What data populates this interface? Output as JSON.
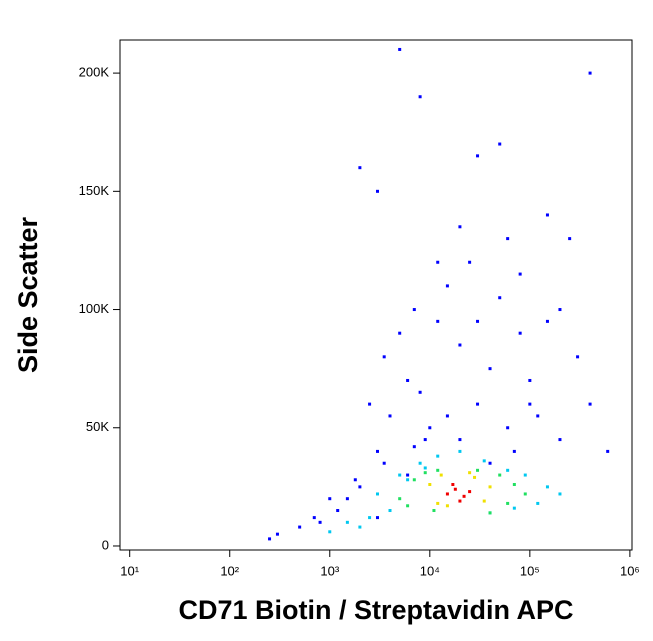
{
  "chart_data": {
    "type": "scatter",
    "x_label": "CD71 Biotin / Streptavidin APC",
    "y_label": "Side Scatter",
    "xscale": "log",
    "xlim": [
      8,
      1050000
    ],
    "ylim": [
      -1700,
      214000
    ],
    "xticks": [
      {
        "value": 10,
        "label": "10¹"
      },
      {
        "value": 100,
        "label": "10²"
      },
      {
        "value": 1000,
        "label": "10³"
      },
      {
        "value": 10000,
        "label": "10⁴"
      },
      {
        "value": 100000,
        "label": "10⁵"
      },
      {
        "value": 1000000,
        "label": "10⁶"
      }
    ],
    "yticks": [
      0,
      {
        "value": 50000,
        "label": "50K"
      },
      {
        "value": 100000,
        "label": "100K"
      },
      {
        "value": 150000,
        "label": "150K"
      },
      {
        "value": 200000,
        "label": "200K"
      }
    ],
    "series": [
      {
        "color": "#0000ff",
        "x": [
          300,
          500,
          800,
          1200,
          1500,
          2000,
          2500,
          3000,
          3500,
          4000,
          5000,
          6000,
          7000,
          8000,
          9000,
          12000,
          15000,
          20000,
          25000,
          30000,
          40000,
          50000,
          60000,
          80000,
          100000,
          150000,
          200000,
          300000,
          400000,
          600000,
          2000,
          3000,
          5000,
          8000,
          12000,
          20000,
          30000,
          50000,
          80000,
          150000,
          250000,
          400000,
          3000,
          6000,
          10000,
          20000,
          40000,
          70000,
          120000,
          3500,
          7000,
          15000,
          30000,
          60000,
          100000,
          200000,
          250,
          700,
          1000,
          1800
        ],
        "y": [
          5000,
          8000,
          10000,
          15000,
          20000,
          25000,
          60000,
          40000,
          80000,
          55000,
          90000,
          70000,
          100000,
          65000,
          45000,
          95000,
          110000,
          85000,
          120000,
          60000,
          75000,
          105000,
          130000,
          90000,
          70000,
          140000,
          100000,
          80000,
          60000,
          40000,
          160000,
          150000,
          210000,
          190000,
          120000,
          135000,
          165000,
          170000,
          115000,
          95000,
          130000,
          200000,
          12000,
          30000,
          50000,
          45000,
          35000,
          40000,
          55000,
          35000,
          42000,
          55000,
          95000,
          50000,
          60000,
          45000,
          3000,
          12000,
          20000,
          28000
        ]
      },
      {
        "color": "#00c8f0",
        "x": [
          1500,
          2500,
          4000,
          6000,
          8000,
          12000,
          20000,
          35000,
          60000,
          90000,
          150000,
          3000,
          5000,
          9000,
          40000,
          70000,
          120000,
          200000,
          1000,
          2000
        ],
        "y": [
          10000,
          12000,
          15000,
          28000,
          35000,
          38000,
          40000,
          36000,
          32000,
          30000,
          25000,
          22000,
          30000,
          33000,
          14000,
          16000,
          18000,
          22000,
          6000,
          8000
        ]
      },
      {
        "color": "#20e060",
        "x": [
          5000,
          7000,
          9000,
          12000,
          30000,
          50000,
          70000,
          90000,
          6000,
          11000,
          40000,
          60000
        ],
        "y": [
          20000,
          28000,
          31000,
          32000,
          32000,
          30000,
          26000,
          22000,
          17000,
          15000,
          14000,
          18000
        ]
      },
      {
        "color": "#f0e000",
        "x": [
          10000,
          13000,
          28000,
          40000,
          12000,
          35000,
          15000,
          25000
        ],
        "y": [
          26000,
          30000,
          29000,
          25000,
          18000,
          19000,
          17000,
          31000
        ]
      },
      {
        "color": "#f00000",
        "x": [
          15000,
          18000,
          22000,
          20000,
          17000,
          25000
        ],
        "y": [
          22000,
          24000,
          21000,
          19000,
          26000,
          23000
        ]
      }
    ]
  }
}
